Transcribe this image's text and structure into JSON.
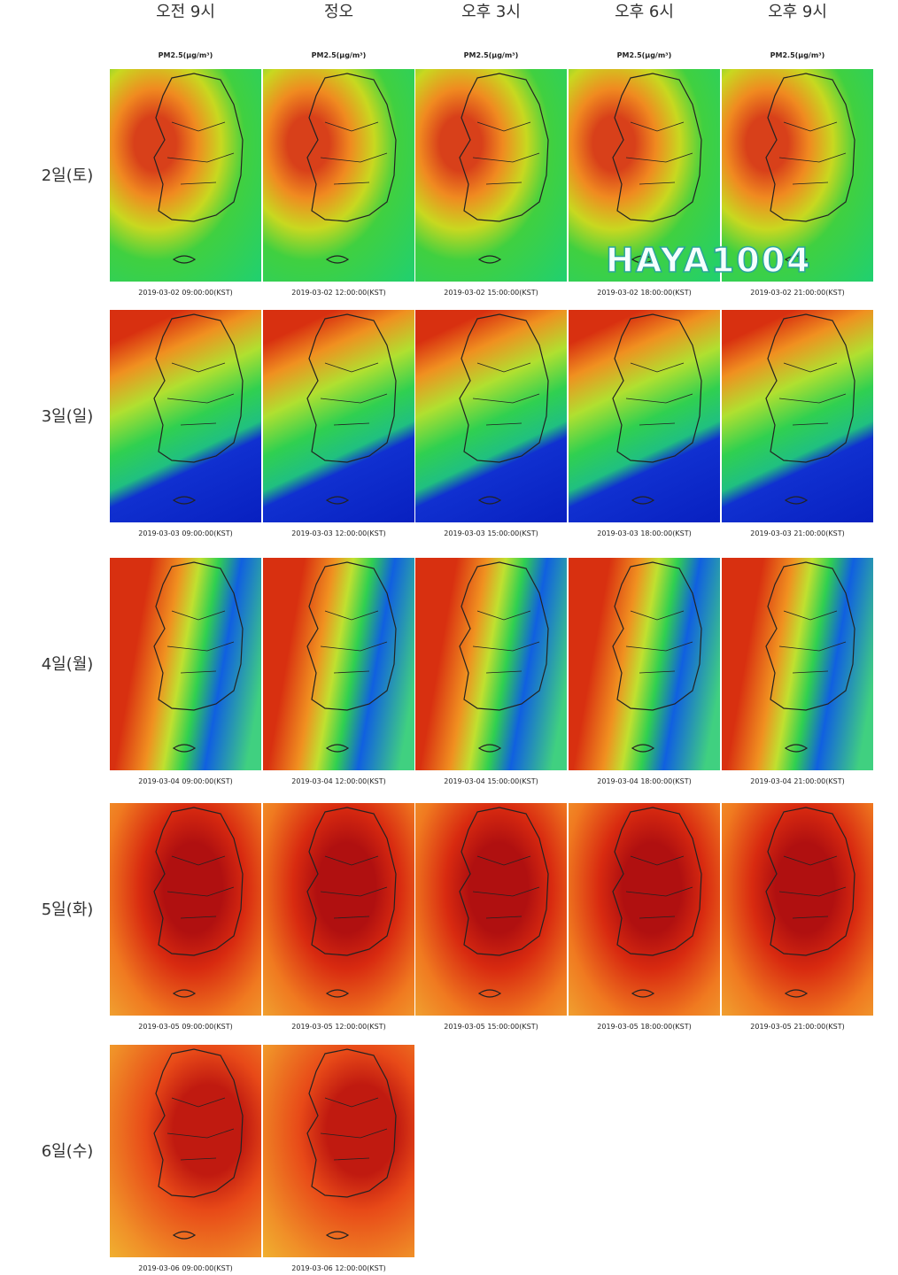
{
  "columns": [
    "오전 9시",
    "정오",
    "오후 3시",
    "오후 6시",
    "오후 9시"
  ],
  "panel_title": "PM2.5(μg/m³)",
  "rows": [
    {
      "label": "2일(토)",
      "timestamps": [
        "2019-03-02 09:00:00(KST)",
        "2019-03-02 12:00:00(KST)",
        "2019-03-02 15:00:00(KST)",
        "2019-03-02 18:00:00(KST)",
        "2019-03-02 21:00:00(KST)"
      ]
    },
    {
      "label": "3일(일)",
      "timestamps": [
        "2019-03-03 09:00:00(KST)",
        "2019-03-03 12:00:00(KST)",
        "2019-03-03 15:00:00(KST)",
        "2019-03-03 18:00:00(KST)",
        "2019-03-03 21:00:00(KST)"
      ]
    },
    {
      "label": "4일(월)",
      "timestamps": [
        "2019-03-04 09:00:00(KST)",
        "2019-03-04 12:00:00(KST)",
        "2019-03-04 15:00:00(KST)",
        "2019-03-04 18:00:00(KST)",
        "2019-03-04 21:00:00(KST)"
      ]
    },
    {
      "label": "5일(화)",
      "timestamps": [
        "2019-03-05 09:00:00(KST)",
        "2019-03-05 12:00:00(KST)",
        "2019-03-05 15:00:00(KST)",
        "2019-03-05 18:00:00(KST)",
        "2019-03-05 21:00:00(KST)"
      ]
    },
    {
      "label": "6일(수)",
      "timestamps": [
        "2019-03-06 09:00:00(KST)",
        "2019-03-06 12:00:00(KST)"
      ]
    }
  ],
  "watermark": "HAYA1004"
}
